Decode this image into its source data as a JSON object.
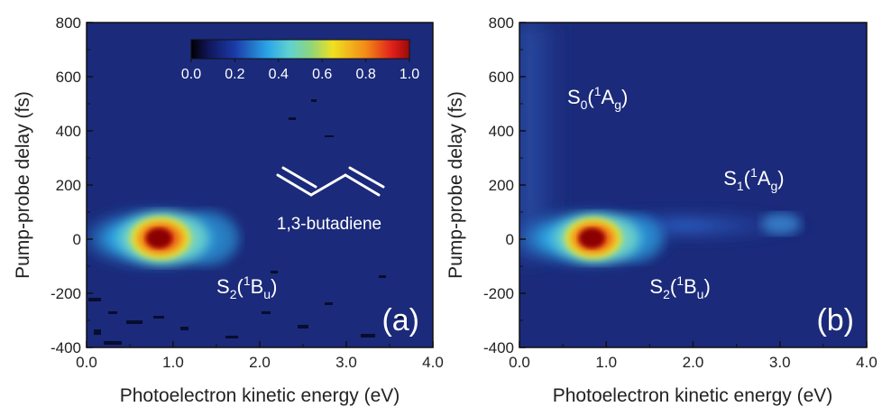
{
  "chart_data": [
    {
      "type": "heatmap",
      "panel_label": "(a)",
      "xlabel": "Photoelectron kinetic energy (eV)",
      "ylabel": "Pump-probe delay (fs)",
      "xlim": [
        0.0,
        4.0
      ],
      "ylim": [
        -400,
        800
      ],
      "x_ticks": [
        "0.0",
        "1.0",
        "2.0",
        "3.0",
        "4.0"
      ],
      "y_ticks": [
        "-400",
        "-200",
        "0",
        "200",
        "400",
        "600",
        "800"
      ],
      "colorbar": {
        "range": [
          0.0,
          1.0
        ],
        "ticks": [
          "0.0",
          "0.2",
          "0.4",
          "0.6",
          "0.8",
          "1.0"
        ],
        "colormap": "jet"
      },
      "molecule_label": "1,3-butadiene",
      "annotations": [
        {
          "base": "S",
          "sub": "2",
          "sup": "1",
          "sym": "B",
          "symsub": "u",
          "suffix": ")",
          "x_eV": 1.5,
          "y_fs": -200
        }
      ],
      "features": [
        {
          "name": "main",
          "x_eV": 0.85,
          "y_fs": 0,
          "peak": 1.0
        }
      ]
    },
    {
      "type": "heatmap",
      "panel_label": "(b)",
      "xlabel": "Photoelectron kinetic energy (eV)",
      "ylabel": "Pump-probe delay (fs)",
      "xlim": [
        0.0,
        4.0
      ],
      "ylim": [
        -400,
        800
      ],
      "x_ticks": [
        "0.0",
        "1.0",
        "2.0",
        "3.0",
        "4.0"
      ],
      "y_ticks": [
        "-400",
        "-200",
        "0",
        "200",
        "400",
        "600",
        "800"
      ],
      "annotations": [
        {
          "base": "S",
          "sub": "0",
          "sup": "1",
          "sym": "A",
          "symsub": "g",
          "suffix": ")",
          "x_eV": 0.55,
          "y_fs": 500
        },
        {
          "base": "S",
          "sub": "1",
          "sup": "1",
          "sym": "A",
          "symsub": "g",
          "suffix": ")",
          "x_eV": 2.35,
          "y_fs": 200
        },
        {
          "base": "S",
          "sub": "2",
          "sup": "1",
          "sym": "B",
          "symsub": "u",
          "suffix": ")",
          "x_eV": 1.5,
          "y_fs": -200
        }
      ],
      "features": [
        {
          "name": "main",
          "x_eV": 0.85,
          "y_fs": 0,
          "peak": 1.0
        },
        {
          "name": "S1 tail",
          "x_eV": 3.0,
          "y_fs": 50,
          "peak": 0.28
        },
        {
          "name": "S0 band",
          "x_eV": 0.2,
          "y_fs": 400,
          "peak": 0.25
        }
      ]
    }
  ]
}
